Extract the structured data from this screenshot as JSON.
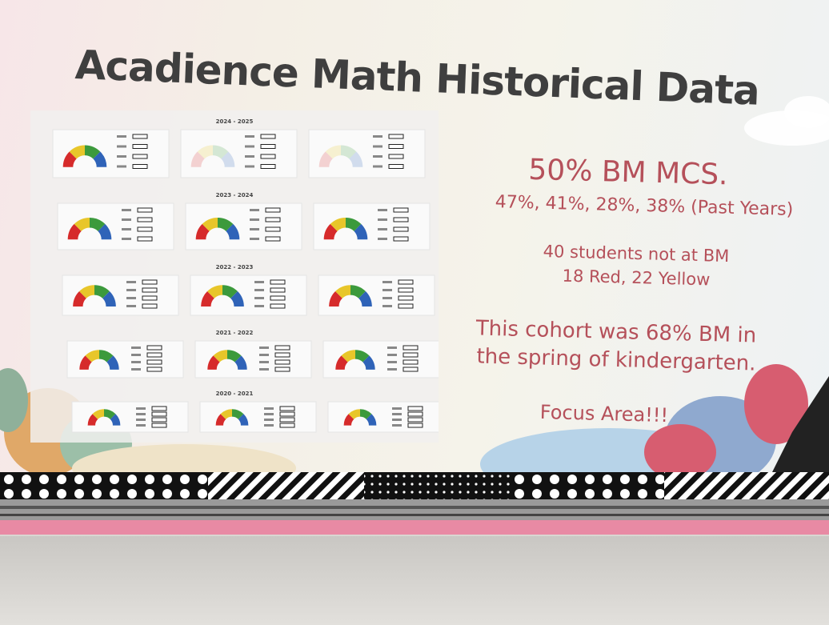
{
  "header": {
    "title": "Acadience Math Historical Data"
  },
  "years": [
    "2024 - 2025",
    "2023 - 2024",
    "2022 - 2023",
    "2021 - 2022",
    "2020 - 2021"
  ],
  "notes": {
    "headline": "50% BM MCS.",
    "past_years": "47%, 41%, 28%, 38% (Past Years)",
    "not_at_bm": "40 students not at BM",
    "breakdown": "18 Red, 22 Yellow",
    "cohort": [
      "This cohort was 68% BM in",
      "the spring of kindergarten."
    ],
    "focus": "Focus Area!!!"
  }
}
